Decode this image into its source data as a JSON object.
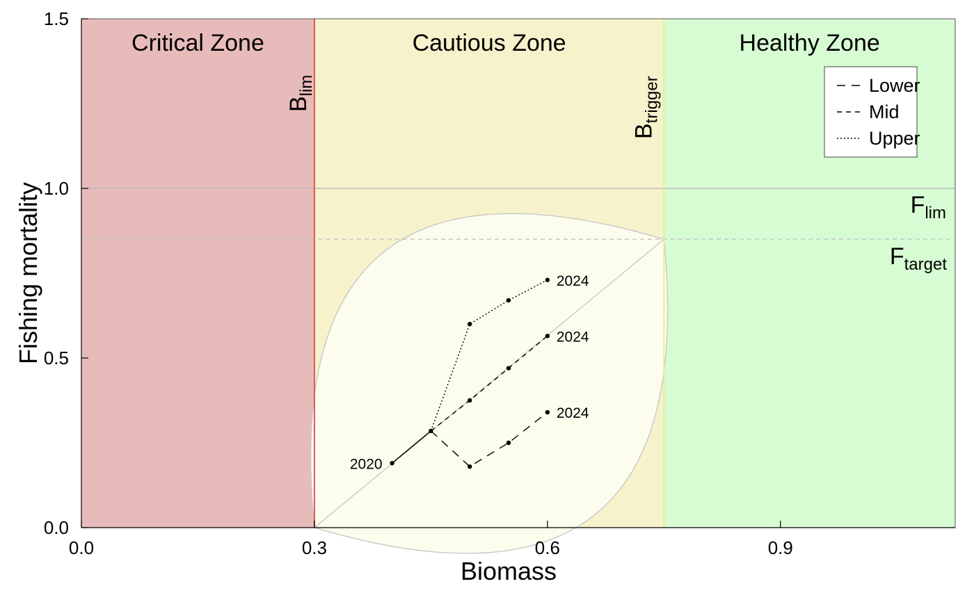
{
  "chart_data": {
    "type": "line",
    "xlabel": "Biomass",
    "ylabel": "Fishing mortality",
    "xlim": [
      0.0,
      1.125
    ],
    "ylim": [
      0.0,
      1.5
    ],
    "xticks": [
      0.0,
      0.3,
      0.6,
      0.9
    ],
    "xtick_labels": [
      "0.0",
      "0.3",
      "0.6",
      "0.9"
    ],
    "yticks": [
      0.0,
      0.5,
      1.0,
      1.5
    ],
    "ytick_labels": [
      "0.0",
      "0.5",
      "1.0",
      "1.5"
    ],
    "grid": false,
    "legend_position": "top-right",
    "zones": [
      {
        "name": "Critical Zone",
        "x_from": 0.0,
        "x_to": 0.3,
        "color": "#e8bbbb"
      },
      {
        "name": "Cautious Zone",
        "x_from": 0.3,
        "x_to": 0.75,
        "color": "#f6f2cc"
      },
      {
        "name": "Healthy Zone",
        "x_from": 0.75,
        "x_to": 1.125,
        "color": "#d7fcd4"
      }
    ],
    "reference_lines": {
      "Blim": {
        "value": 0.3,
        "label": "B",
        "subscript": "lim",
        "color": "#dd5555"
      },
      "Btrigger": {
        "value": 0.75,
        "label": "B",
        "subscript": "trigger",
        "color": "#eaea9a"
      },
      "Flim": {
        "value": 1.0,
        "label": "F",
        "subscript": "lim",
        "color": "#bbbbbb"
      },
      "Ftarget": {
        "value": 0.85,
        "label": "F",
        "subscript": "target",
        "color": "#c4c4c4"
      }
    },
    "envelope": {
      "start": [
        0.3,
        0.0
      ],
      "end": [
        0.75,
        0.85
      ],
      "fill": "#fdfdee",
      "stroke": "#c4c4c4",
      "upper_bow": 0.07,
      "lower_bow": 0.07
    },
    "history": {
      "x": [
        0.4,
        0.45
      ],
      "y": [
        0.19,
        0.285
      ]
    },
    "series": [
      {
        "name": "Lower",
        "dash": "12,9",
        "x": [
          0.45,
          0.5,
          0.55,
          0.6
        ],
        "y": [
          0.285,
          0.18,
          0.25,
          0.34
        ]
      },
      {
        "name": "Mid",
        "dash": "7,6",
        "x": [
          0.45,
          0.5,
          0.55,
          0.6
        ],
        "y": [
          0.285,
          0.375,
          0.47,
          0.565
        ]
      },
      {
        "name": "Upper",
        "dash": "2,3",
        "x": [
          0.45,
          0.5,
          0.55,
          0.6
        ],
        "y": [
          0.285,
          0.6,
          0.67,
          0.73
        ]
      }
    ],
    "annotations": [
      {
        "text": "2020",
        "x": 0.4,
        "y": 0.19,
        "anchor": "left"
      },
      {
        "text": "2024",
        "x": 0.6,
        "y": 0.73,
        "anchor": "right"
      },
      {
        "text": "2024",
        "x": 0.6,
        "y": 0.565,
        "anchor": "right"
      },
      {
        "text": "2024",
        "x": 0.6,
        "y": 0.34,
        "anchor": "right"
      }
    ]
  }
}
